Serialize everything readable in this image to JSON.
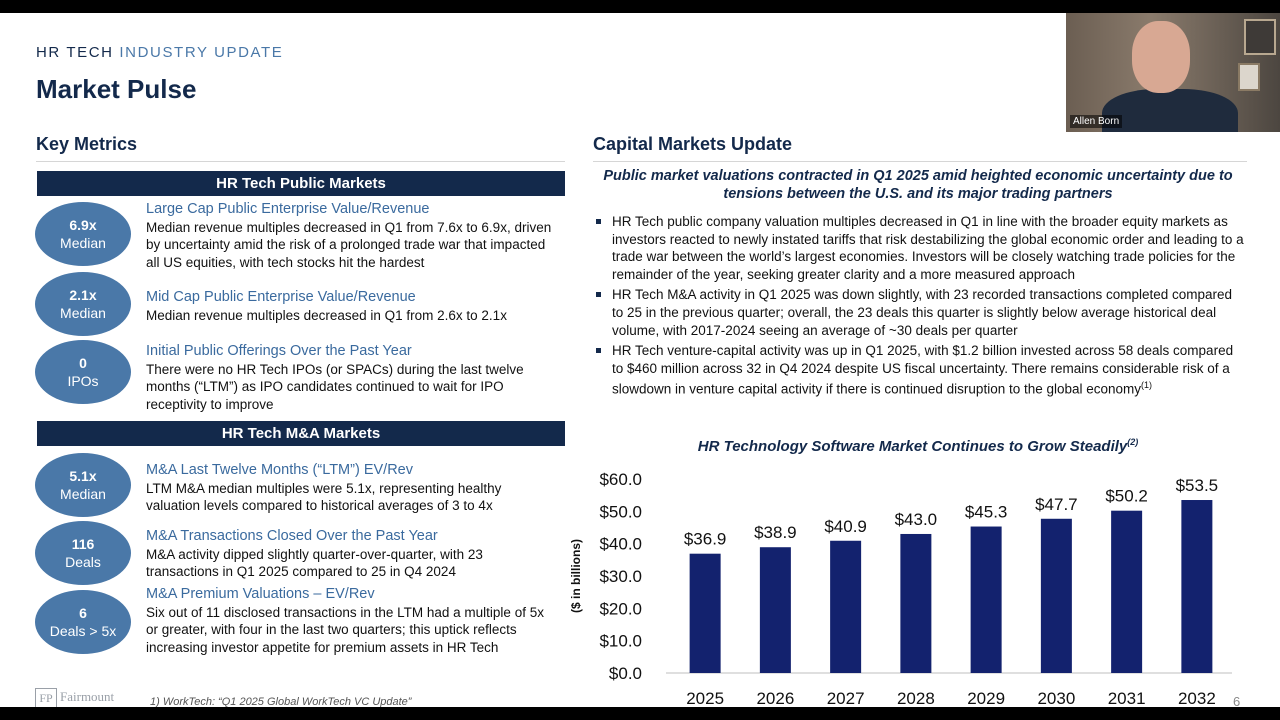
{
  "header": {
    "eyebrow_main": "HR TECH",
    "eyebrow_hl": "INDUSTRY UPDATE",
    "title": "Market Pulse"
  },
  "key_metrics": {
    "heading": "Key Metrics",
    "public_bar": "HR Tech Public Markets",
    "ma_bar": "HR Tech M&A Markets",
    "items": [
      {
        "value": "6.9x",
        "unit": "Median",
        "title": "Large Cap Public Enterprise Value/Revenue",
        "text": "Median revenue multiples decreased in Q1 from 7.6x to 6.9x, driven by uncertainty amid the risk of a prolonged trade war that impacted all US equities, with tech stocks hit the hardest"
      },
      {
        "value": "2.1x",
        "unit": "Median",
        "title": "Mid Cap Public Enterprise Value/Revenue",
        "text": "Median revenue multiples decreased in Q1 from 2.6x to 2.1x"
      },
      {
        "value": "0",
        "unit": "IPOs",
        "title": "Initial Public Offerings Over the Past Year",
        "text": "There were no HR Tech IPOs (or SPACs) during the last twelve months (“LTM”) as IPO candidates continued to wait for IPO receptivity to improve"
      },
      {
        "value": "5.1x",
        "unit": "Median",
        "title": "M&A Last Twelve Months (“LTM”) EV/Rev",
        "text": "LTM M&A median multiples were 5.1x, representing healthy valuation levels compared to historical averages of 3 to 4x"
      },
      {
        "value": "116",
        "unit": "Deals",
        "title": "M&A Transactions Closed Over the Past Year",
        "text": "M&A activity dipped slightly quarter-over-quarter, with 23 transactions in Q1 2025 compared to 25 in Q4 2024"
      },
      {
        "value": "6",
        "unit": "Deals > 5x",
        "title": "M&A Premium Valuations – EV/Rev",
        "text": "Six out of 11 disclosed transactions in the LTM had a multiple of 5x or greater, with four in the last two quarters; this uptick reflects increasing investor appetite for premium assets in HR Tech"
      }
    ]
  },
  "capital_markets": {
    "heading": "Capital Markets Update",
    "subtitle": "Public market valuations contracted in Q1 2025 amid heighted economic uncertainty due to tensions between the U.S. and its major trading partners",
    "bullets": [
      "HR Tech public company valuation multiples decreased in Q1 in line with the broader equity markets as investors reacted to newly instated tariffs that risk destabilizing the global economic order and leading to a trade war between the world’s largest economies. Investors will be closely watching trade policies for the remainder of the year, seeking greater clarity and a more measured approach",
      "HR Tech M&A activity in Q1 2025 was down slightly, with 23 recorded transactions completed compared to 25 in the previous quarter; overall, the 23 deals this quarter is slightly below average historical deal volume, with 2017-2024 seeing an average of ~30 deals per quarter",
      "HR Tech venture-capital activity was up in Q1 2025, with $1.2 billion invested across 58 deals compared to $460 million across 32 in Q4 2024 despite US fiscal uncertainty. There remains considerable risk of a slowdown in venture capital activity if there is continued disruption to the global economy"
    ],
    "bullet3_sup": "(1)"
  },
  "chart_data": {
    "type": "bar",
    "title": "HR Technology Software Market Continues to Grow Steadily",
    "title_sup": "(2)",
    "ylabel": "($ in billions)",
    "xlabel": "",
    "categories": [
      "2025",
      "2026",
      "2027",
      "2028",
      "2029",
      "2030",
      "2031",
      "2032"
    ],
    "values": [
      36.9,
      38.9,
      40.9,
      43.0,
      45.3,
      47.7,
      50.2,
      53.5
    ],
    "data_labels": [
      "$36.9",
      "$38.9",
      "$40.9",
      "$43.0",
      "$45.3",
      "$47.7",
      "$50.2",
      "$53.5"
    ],
    "yticks": [
      0,
      10,
      20,
      30,
      40,
      50,
      60
    ],
    "ytick_labels": [
      "$0.0",
      "$10.0",
      "$20.0",
      "$30.0",
      "$40.0",
      "$50.0",
      "$60.0"
    ],
    "ylim": [
      0,
      60
    ],
    "bar_color": "#13226e"
  },
  "footer": {
    "footnote": "1)     WorkTech: “Q1 2025 Global WorkTech VC Update”",
    "logo_mark": "FP",
    "logo_text": "Fairmount",
    "page": "6"
  },
  "webcam": {
    "name": "Allen Born"
  }
}
